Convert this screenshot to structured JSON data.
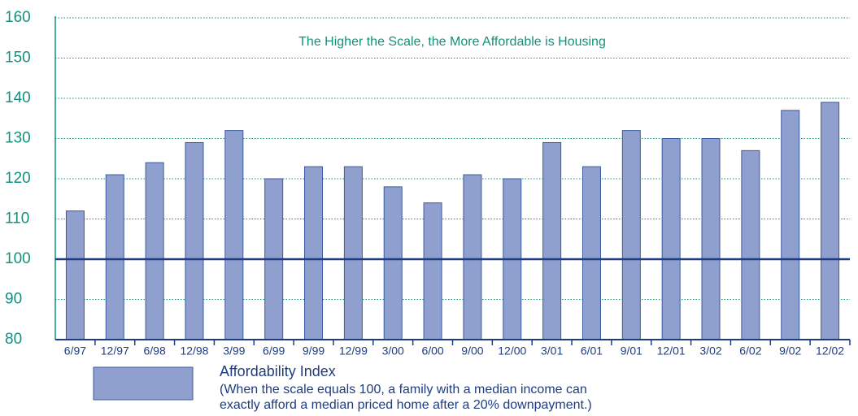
{
  "chart_data": {
    "type": "bar",
    "annotation": "The Higher the Scale, the More Affordable is Housing",
    "categories": [
      "6/97",
      "12/97",
      "6/98",
      "12/98",
      "3/99",
      "6/99",
      "9/99",
      "12/99",
      "3/00",
      "6/00",
      "9/00",
      "12/00",
      "3/01",
      "6/01",
      "9/01",
      "12/01",
      "3/02",
      "6/02",
      "9/02",
      "12/02"
    ],
    "series": [
      {
        "name": "Affordability Index",
        "color": "#8fa0cf",
        "values": [
          112,
          121,
          124,
          129,
          132,
          120,
          123,
          123,
          118,
          114,
          121,
          120,
          129,
          123,
          132,
          130,
          130,
          127,
          137,
          139
        ]
      }
    ],
    "legend_note": [
      "(When the scale equals 100, a family with a median income can",
      "exactly afford a median priced home after a 20% downpayment.)"
    ],
    "ylim": [
      80,
      160
    ],
    "yticks": [
      80,
      90,
      100,
      110,
      120,
      130,
      140,
      150,
      160
    ],
    "reference_line": 100,
    "grid": true
  }
}
